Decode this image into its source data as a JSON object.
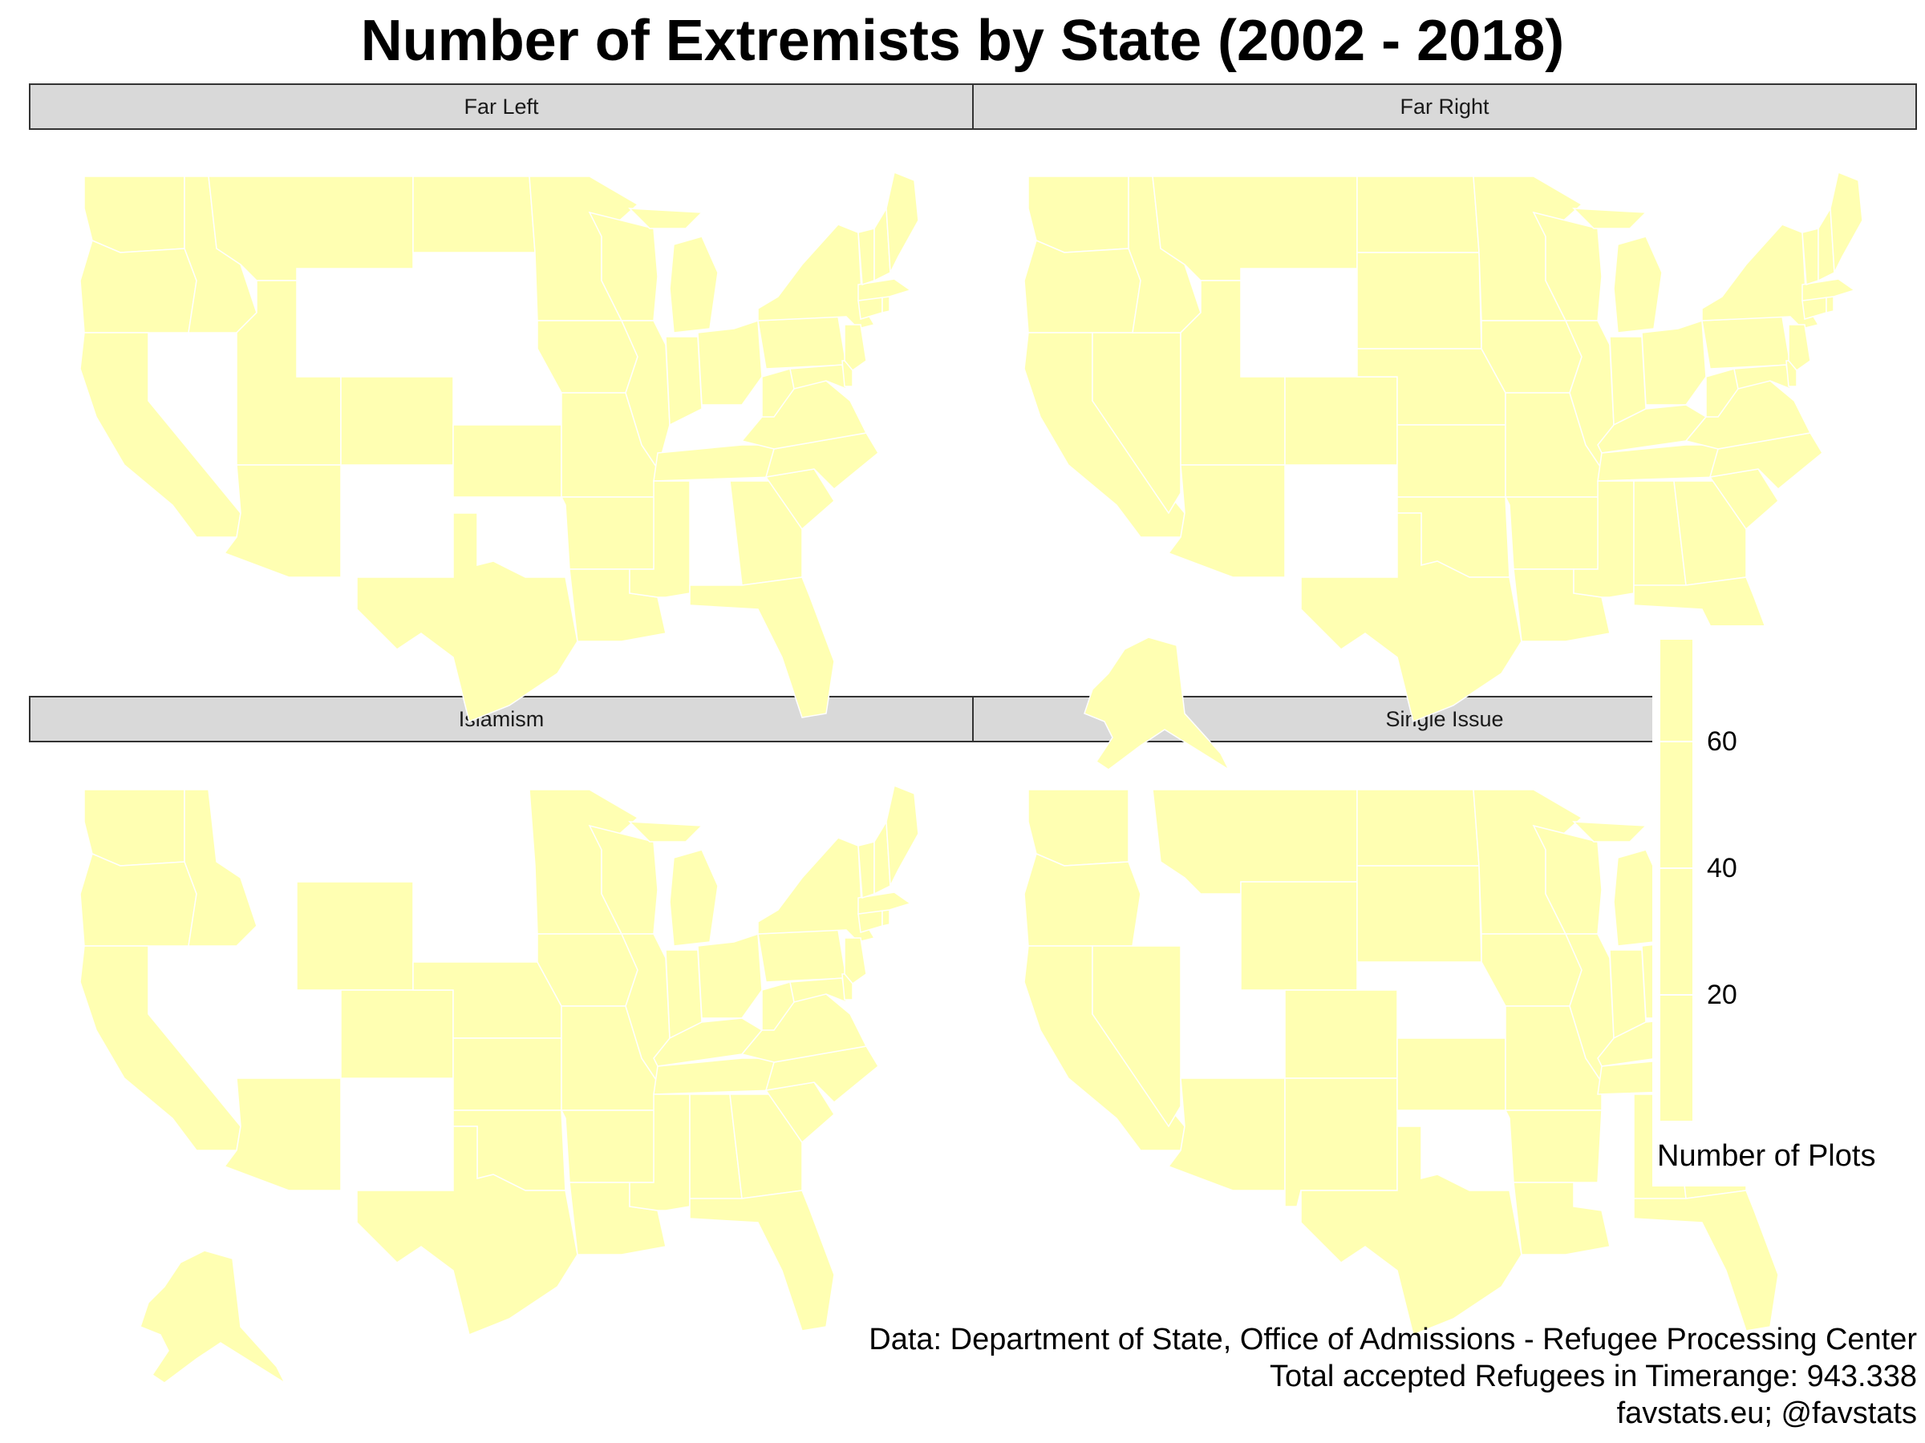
{
  "title": "Number of Extremists by State (2002 - 2018)",
  "colors": {
    "fill": "#ffffb2",
    "border": "#ffffff",
    "strip_bg": "#d9d9d9"
  },
  "panels": [
    {
      "label": "Far Left",
      "missing": [
        "NV",
        "WY",
        "SD",
        "NE",
        "NM",
        "OK",
        "KY",
        "AL",
        "AK",
        "HI"
      ],
      "show_alaska": false
    },
    {
      "label": "Far Right",
      "missing": [
        "WY",
        "NM",
        "HI"
      ],
      "show_alaska": true
    },
    {
      "label": "Islamism",
      "missing": [
        "NV",
        "UT",
        "NM",
        "ND",
        "SD",
        "MT",
        "HI"
      ],
      "show_alaska": true
    },
    {
      "label": "Single Issue",
      "missing": [
        "ID",
        "UT",
        "NE",
        "OK",
        "MS",
        "HI"
      ],
      "show_alaska": false
    }
  ],
  "legend": {
    "title": "Number of Plots",
    "ticks": [
      "60",
      "40",
      "20"
    ],
    "tick_values": [
      60,
      40,
      20
    ],
    "range": [
      0,
      75
    ]
  },
  "caption": [
    "Data: Department of State, Office of Admissions - Refugee Processing Center",
    "Total accepted Refugees in Timerange: 943.338",
    "favstats.eu; @favstats"
  ]
}
